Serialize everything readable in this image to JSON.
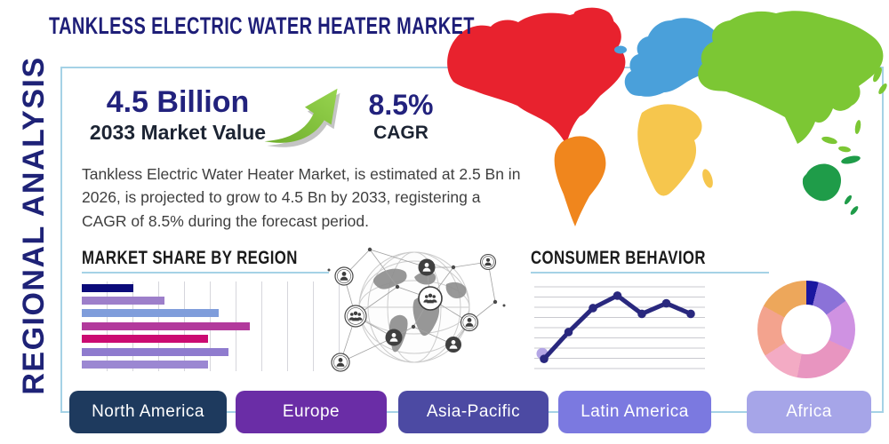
{
  "header": {
    "title": "TANKLESS ELECTRIC WATER HEATER MARKET"
  },
  "side_label": "REGIONAL ANALYSIS",
  "stats": {
    "value": "4.5 Billion",
    "value_caption": "2033 Market Value",
    "cagr": "8.5%",
    "cagr_caption": "CAGR",
    "arrow_icon": "growth-arrow-icon",
    "arrow_color_light": "#97d44f",
    "arrow_color_dark": "#6fae2c"
  },
  "description": "Tankless Electric Water Heater Market, is estimated at 2.5 Bn in 2026, is projected to grow to 4.5 Bn by 2033, registering a CAGR of 8.5% during the forecast period.",
  "section_headers": {
    "market_share": "MARKET SHARE BY REGION",
    "consumer_behavior": "CONSUMER BEHAVIOR"
  },
  "regions": [
    {
      "label": "North America",
      "color": "#1e3a5e"
    },
    {
      "label": "Europe",
      "color": "#6a2da6"
    },
    {
      "label": "Asia-Pacific",
      "color": "#4c4aa3"
    },
    {
      "label": "Latin America",
      "color": "#7b79e0"
    },
    {
      "label": "Africa",
      "color": "#a6a5e8"
    }
  ],
  "chart_data": [
    {
      "type": "bar",
      "title": "MARKET SHARE BY REGION",
      "orientation": "horizontal",
      "values": [
        20,
        32,
        53,
        65,
        49,
        57,
        49
      ],
      "value_unit": "percent-of-axis-estimated",
      "colors": [
        "#0b0b7a",
        "#9d7fca",
        "#7f9ddb",
        "#b23a9c",
        "#cb0b72",
        "#8f7bce",
        "#9b87d2"
      ],
      "grid": "vertical",
      "tick_labels": []
    },
    {
      "type": "line",
      "title": "CONSUMER BEHAVIOR",
      "x": [
        1,
        2,
        3,
        4,
        5,
        6,
        7
      ],
      "values": [
        10,
        38,
        63,
        76,
        57,
        68,
        57
      ],
      "value_unit": "percent-of-axis-estimated",
      "color": "#29287e",
      "first_point_halo_color": "#b3a5e5",
      "grid": "horizontal",
      "tick_labels": []
    },
    {
      "type": "pie",
      "variant": "donut",
      "values": [
        4,
        11,
        17,
        21,
        13,
        17,
        17
      ],
      "colors": [
        "#1a17a0",
        "#8b72d8",
        "#cf92e2",
        "#e895c0",
        "#f3abc4",
        "#f3a38e",
        "#eda75b"
      ],
      "labels": []
    }
  ],
  "map": {
    "name": "world-map",
    "colors": {
      "north_america": "#e8222e",
      "south_america": "#f0861d",
      "europe": "#4aa0da",
      "africa": "#f6c64d",
      "asia": "#7cc734",
      "oceania": "#1f9c49"
    }
  },
  "theme": {
    "navy": "#22227d",
    "dark": "#1c2433",
    "border_blue": "#a5d2e6",
    "body_text": "#3f3f3f"
  }
}
